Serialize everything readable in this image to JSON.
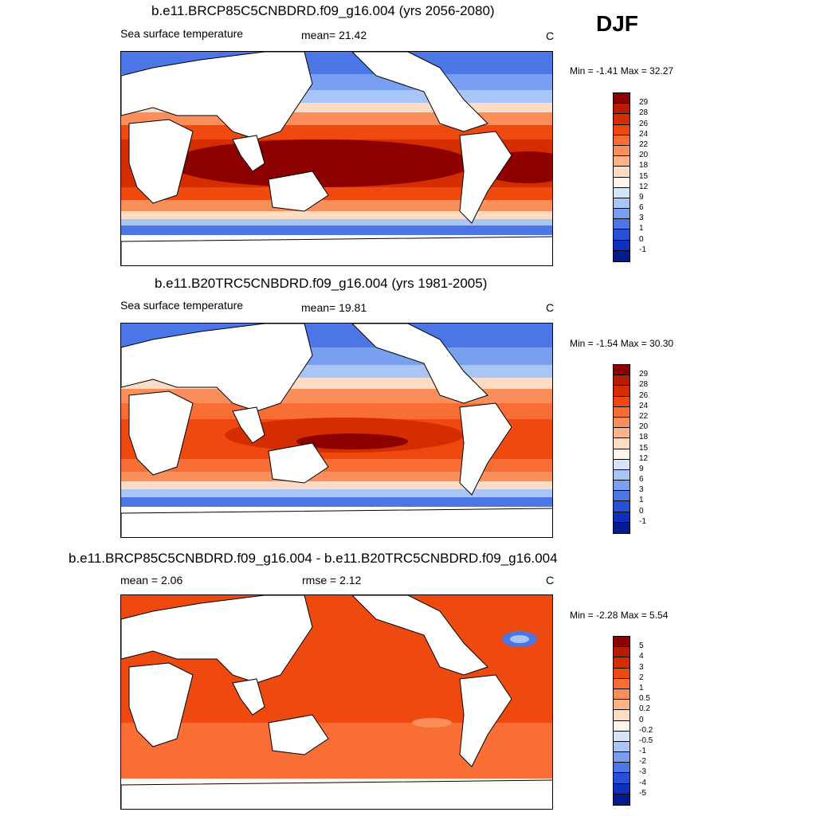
{
  "season": "DJF",
  "panels": [
    {
      "title": "b.e11.BRCP85C5CNBDRD.f09_g16.004 (yrs 2056-2080)",
      "left_label": "Sea surface temperature",
      "center_label": "mean=  21.42",
      "units": "C",
      "minmax": "Min =  -1.41 Max =  32.27"
    },
    {
      "title": "b.e11.B20TRC5CNBDRD.f09_g16.004 (yrs 1981-2005)",
      "left_label": "Sea surface temperature",
      "center_label": "mean=  19.81",
      "units": "C",
      "minmax": "Min =  -1.54 Max =  30.30"
    },
    {
      "title": "b.e11.BRCP85C5CNBDRD.f09_g16.004 - b.e11.B20TRC5CNBDRD.f09_g16.004",
      "left_label": "mean =   2.06",
      "center_label": "rmse =   2.12",
      "units": "C",
      "minmax": "Min =  -2.28 Max =   5.54"
    }
  ],
  "colorbars": {
    "sst": {
      "labels": [
        "29",
        "28",
        "26",
        "24",
        "22",
        "20",
        "18",
        "15",
        "12",
        "9",
        "6",
        "3",
        "1",
        "0",
        "-1"
      ],
      "colors": [
        "#8c0000",
        "#b51c00",
        "#d42e00",
        "#ee4a10",
        "#f86e35",
        "#fb8f5c",
        "#fdb38a",
        "#fddcc3",
        "#fff5ea",
        "#d6e4fa",
        "#a9c5f6",
        "#789ff0",
        "#4c76e6",
        "#2650d6",
        "#0f2fbf",
        "#051c8f"
      ]
    },
    "diff": {
      "labels": [
        "5",
        "4",
        "3",
        "2",
        "1",
        "0.5",
        "0.2",
        "0",
        "-0.2",
        "-0.5",
        "-1",
        "-2",
        "-3",
        "-4",
        "-5"
      ],
      "colors": [
        "#8c0000",
        "#b51c00",
        "#d42e00",
        "#ee4a10",
        "#f86e35",
        "#fb8f5c",
        "#fdb38a",
        "#fddcc3",
        "#fff5ea",
        "#d6e4fa",
        "#a9c5f6",
        "#789ff0",
        "#4c76e6",
        "#2650d6",
        "#0f2fbf",
        "#051c8f"
      ]
    }
  },
  "map_colors": {
    "land": "#ffffff",
    "coast": "#000000"
  }
}
